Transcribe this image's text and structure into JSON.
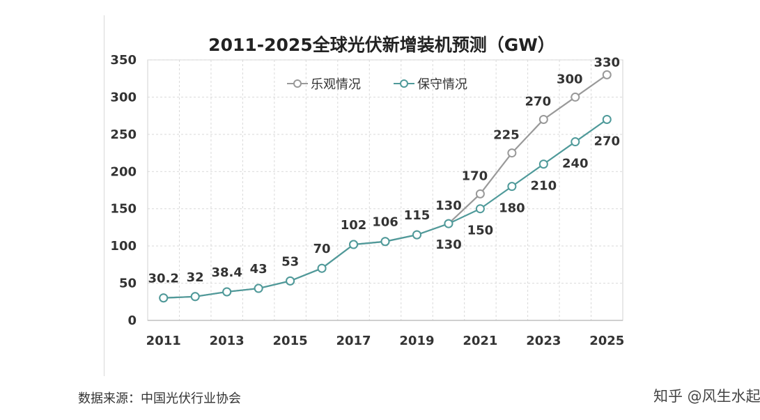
{
  "chart_data": {
    "type": "line",
    "title": "2011-2025全球光伏新增装机预测（GW）",
    "x": [
      2011,
      2012,
      2013,
      2014,
      2015,
      2016,
      2017,
      2018,
      2019,
      2020,
      2021,
      2022,
      2023,
      2024,
      2025
    ],
    "x_tick_labels": [
      "2011",
      "2013",
      "2015",
      "2017",
      "2019",
      "2021",
      "2023",
      "2025"
    ],
    "y_ticks": [
      0,
      50,
      100,
      150,
      200,
      250,
      300,
      350
    ],
    "ylim": [
      0,
      350
    ],
    "grid": true,
    "legend_position": "top-center",
    "series": [
      {
        "name": "乐观情况",
        "color": "#999999",
        "values": [
          30.2,
          32,
          38.4,
          43,
          53,
          70,
          102,
          106,
          115,
          130,
          170,
          225,
          270,
          300,
          330
        ]
      },
      {
        "name": "保守情况",
        "color": "#4f9a9a",
        "values": [
          30.2,
          32,
          38.4,
          43,
          53,
          70,
          102,
          106,
          115,
          130,
          150,
          180,
          210,
          240,
          270
        ]
      }
    ]
  },
  "footer": {
    "source": "数据来源：中国光伏行业协会",
    "watermark": "知乎 @风生水起h"
  }
}
